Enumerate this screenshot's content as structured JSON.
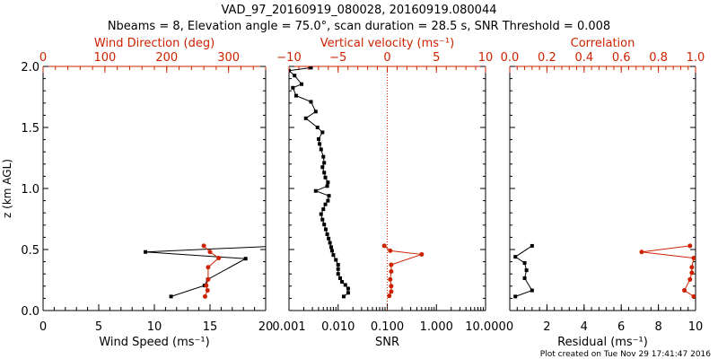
{
  "title": {
    "line1": "VAD_97_20160919_080028, 20160919.080044",
    "line2": "Nbeams = 8, Elevation angle = 75.0°, scan duration = 28.5 s, SNR Threshold = 0.008"
  },
  "footer": "Plot created on Tue Nov 29 17:41:47 2016",
  "colors": {
    "primary": "#000000",
    "secondary": "#cc2200"
  },
  "chart_data": [
    {
      "type": "line",
      "panel": "wind",
      "ylabel": "z (km AGL)",
      "ylim": [
        0,
        2
      ],
      "yticks": [
        "0.0",
        "0.5",
        "1.0",
        "1.5",
        "2.0"
      ],
      "xlabel_bottom": "Wind Speed (ms⁻¹)",
      "xlim_bottom": [
        0,
        20
      ],
      "xticks_bottom": [
        "0",
        "5",
        "10",
        "15",
        "20"
      ],
      "xlabel_top": "Wind Direction (deg)",
      "xlim_top": [
        0,
        360
      ],
      "xticks_top": [
        "0",
        "100",
        "200",
        "300"
      ],
      "series": [
        {
          "axis": "bottom",
          "color": "#000000",
          "x": [
            11.5,
            14.5,
            14.8,
            18.2,
            9.2,
            20.2
          ],
          "y": [
            0.115,
            0.205,
            0.255,
            0.425,
            0.48,
            0.525
          ]
        },
        {
          "axis": "top",
          "color": "#cc2200",
          "x": [
            262,
            266,
            264,
            267,
            267,
            284,
            270,
            260
          ],
          "y": [
            0.115,
            0.165,
            0.205,
            0.255,
            0.355,
            0.43,
            0.48,
            0.53
          ]
        }
      ]
    },
    {
      "type": "line",
      "panel": "snr",
      "xlabel_bottom": "SNR",
      "xscale_bottom": "log",
      "xlim_bottom": [
        0.001,
        10
      ],
      "xticks_bottom": [
        "0.001",
        "0.010",
        "0.100",
        "1.000",
        "10.000"
      ],
      "xlabel_top": "Vertical velocity (ms⁻¹)",
      "xlim_top": [
        -10,
        10
      ],
      "xticks_top": [
        "−10",
        "−5",
        "0",
        "5",
        "10"
      ],
      "reference_line": {
        "axis": "top",
        "x": 0,
        "style": "dotted",
        "color": "#cc2200"
      },
      "series": [
        {
          "axis": "bottom",
          "color": "#000000",
          "x": [
            0.013,
            0.016,
            0.016,
            0.014,
            0.012,
            0.011,
            0.01,
            0.01,
            0.01,
            0.009,
            0.008,
            0.0075,
            0.0072,
            0.0068,
            0.0064,
            0.006,
            0.0056,
            0.0052,
            0.0048,
            0.0045,
            0.005,
            0.0055,
            0.0062,
            0.0065,
            0.0035,
            0.006,
            0.0062,
            0.0055,
            0.0052,
            0.0048,
            0.0052,
            0.005,
            0.0045,
            0.0042,
            0.004,
            0.0048,
            0.0038,
            0.0022,
            0.0035,
            0.0028,
            0.0014,
            0.0012,
            0.0018,
            0.0013,
            0.001,
            0.0028
          ],
          "y": [
            0.115,
            0.145,
            0.18,
            0.21,
            0.235,
            0.265,
            0.3,
            0.34,
            0.375,
            0.415,
            0.455,
            0.49,
            0.52,
            0.555,
            0.59,
            0.625,
            0.665,
            0.705,
            0.745,
            0.79,
            0.83,
            0.87,
            0.9,
            0.94,
            0.98,
            1.02,
            1.05,
            1.09,
            1.13,
            1.175,
            1.21,
            1.26,
            1.32,
            1.365,
            1.405,
            1.46,
            1.5,
            1.575,
            1.63,
            1.71,
            1.76,
            1.825,
            1.855,
            1.925,
            1.965,
            1.99
          ]
        },
        {
          "axis": "top",
          "color": "#cc2200",
          "x": [
            0.2,
            0.4,
            0.4,
            0.3,
            0.4,
            0.4,
            3.5,
            0.3,
            -0.3
          ],
          "y": [
            0.12,
            0.155,
            0.2,
            0.255,
            0.32,
            0.375,
            0.46,
            0.49,
            0.53
          ]
        }
      ]
    },
    {
      "type": "line",
      "panel": "correlation",
      "xlabel_bottom": "Residual (ms⁻¹)",
      "xlim_bottom": [
        0,
        10
      ],
      "xticks_bottom": [
        "0",
        "2",
        "4",
        "6",
        "8",
        "10"
      ],
      "xlabel_top": "Correlation",
      "xlim_top": [
        0,
        1
      ],
      "xticks_top": [
        "0.0",
        "0.2",
        "0.4",
        "0.6",
        "0.8",
        "1.0"
      ],
      "series": [
        {
          "axis": "bottom",
          "color": "#000000",
          "x": [
            0.3,
            1.2,
            0.8,
            0.9,
            0.8,
            0.3,
            1.2
          ],
          "y": [
            0.115,
            0.165,
            0.265,
            0.33,
            0.39,
            0.44,
            0.53
          ]
        },
        {
          "axis": "top",
          "color": "#cc2200",
          "x": [
            0.99,
            0.94,
            0.97,
            0.98,
            0.98,
            0.99,
            0.71,
            0.97
          ],
          "y": [
            0.115,
            0.165,
            0.255,
            0.31,
            0.355,
            0.43,
            0.48,
            0.53
          ]
        }
      ]
    }
  ]
}
